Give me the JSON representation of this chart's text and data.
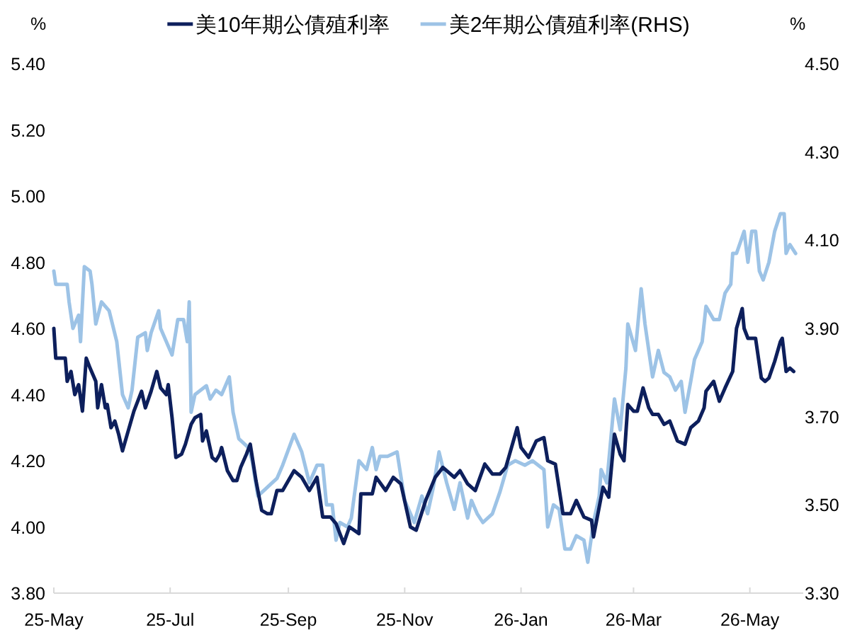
{
  "chart_data": {
    "type": "line",
    "ylabel": "%",
    "y2label": "%",
    "legend": "top",
    "xlim": [
      "2025-05-01",
      "2026-05-29"
    ],
    "xticks": [
      {
        "value": "2025-05-01",
        "label": "25-May"
      },
      {
        "value": "2025-07-01",
        "label": "25-Jul"
      },
      {
        "value": "2025-09-01",
        "label": "25-Sep"
      },
      {
        "value": "2025-11-01",
        "label": "25-Nov"
      },
      {
        "value": "2026-01-01",
        "label": "26-Jan"
      },
      {
        "value": "2026-03-01",
        "label": "26-Mar"
      },
      {
        "value": "2026-05-01",
        "label": "26-May"
      }
    ],
    "ylim": [
      3.8,
      5.4
    ],
    "yticks": [
      {
        "value": 3.8,
        "label": "3.80"
      },
      {
        "value": 4.0,
        "label": "4.00"
      },
      {
        "value": 4.2,
        "label": "4.20"
      },
      {
        "value": 4.4,
        "label": "4.40"
      },
      {
        "value": 4.6,
        "label": "4.60"
      },
      {
        "value": 4.8,
        "label": "4.80"
      },
      {
        "value": 5.0,
        "label": "5.00"
      },
      {
        "value": 5.2,
        "label": "5.20"
      },
      {
        "value": 5.4,
        "label": "5.40"
      }
    ],
    "y2lim": [
      3.3,
      4.5
    ],
    "y2ticks": [
      {
        "value": 3.3,
        "label": "3.30"
      },
      {
        "value": 3.5,
        "label": "3.50"
      },
      {
        "value": 3.7,
        "label": "3.70"
      },
      {
        "value": 3.9,
        "label": "3.90"
      },
      {
        "value": 4.1,
        "label": "4.10"
      },
      {
        "value": 4.3,
        "label": "4.30"
      },
      {
        "value": 4.5,
        "label": "4.50"
      }
    ],
    "series": [
      {
        "name": "美10年期公債殖利率",
        "color": "#0d1f5c",
        "x": [
          "2025-05-01",
          "2025-05-02",
          "2025-05-07",
          "2025-05-08",
          "2025-05-10",
          "2025-05-12",
          "2025-05-14",
          "2025-05-16",
          "2025-05-18",
          "2025-05-20",
          "2025-05-23",
          "2025-05-24",
          "2025-05-26",
          "2025-05-28",
          "2025-05-29",
          "2025-05-31",
          "2025-06-02",
          "2025-06-04",
          "2025-06-06",
          "2025-06-09",
          "2025-06-12",
          "2025-06-14",
          "2025-06-16",
          "2025-06-18",
          "2025-06-21",
          "2025-06-24",
          "2025-06-26",
          "2025-06-29",
          "2025-06-30",
          "2025-07-02",
          "2025-07-04",
          "2025-07-07",
          "2025-07-09",
          "2025-07-11",
          "2025-07-12",
          "2025-07-14",
          "2025-07-17",
          "2025-07-18",
          "2025-07-20",
          "2025-07-23",
          "2025-07-25",
          "2025-07-27",
          "2025-07-28",
          "2025-07-31",
          "2025-08-03",
          "2025-08-05",
          "2025-08-07",
          "2025-08-10",
          "2025-08-12",
          "2025-08-15",
          "2025-08-18",
          "2025-08-21",
          "2025-08-23",
          "2025-08-26",
          "2025-08-29",
          "2025-09-04",
          "2025-09-08",
          "2025-09-12",
          "2025-09-16",
          "2025-09-19",
          "2025-09-23",
          "2025-09-26",
          "2025-09-30",
          "2025-10-03",
          "2025-10-08",
          "2025-10-09",
          "2025-10-15",
          "2025-10-17",
          "2025-10-22",
          "2025-10-26",
          "2025-10-30",
          "2025-11-04",
          "2025-11-07",
          "2025-11-12",
          "2025-11-17",
          "2025-11-21",
          "2025-11-27",
          "2025-11-30",
          "2025-12-04",
          "2025-12-08",
          "2025-12-13",
          "2025-12-17",
          "2025-12-21",
          "2025-12-24",
          "2025-12-26",
          "2025-12-30",
          "2026-01-01",
          "2026-01-05",
          "2026-01-09",
          "2026-01-13",
          "2026-01-15",
          "2026-01-19",
          "2026-01-23",
          "2026-01-27",
          "2026-01-30",
          "2026-02-03",
          "2026-02-07",
          "2026-02-08",
          "2026-02-13",
          "2026-02-16",
          "2026-02-19",
          "2026-02-22",
          "2026-02-24",
          "2026-02-26",
          "2026-03-01",
          "2026-03-03",
          "2026-03-06",
          "2026-03-09",
          "2026-03-11",
          "2026-03-14",
          "2026-03-17",
          "2026-03-20",
          "2026-03-24",
          "2026-03-28",
          "2026-03-31",
          "2026-04-04",
          "2026-04-07",
          "2026-04-08",
          "2026-04-12",
          "2026-04-15",
          "2026-04-18",
          "2026-04-22",
          "2026-04-24",
          "2026-04-27",
          "2026-04-28",
          "2026-04-30",
          "2026-05-04",
          "2026-05-07",
          "2026-05-09",
          "2026-05-11",
          "2026-05-14",
          "2026-05-17",
          "2026-05-18",
          "2026-05-20",
          "2026-05-22",
          "2026-05-24"
        ],
        "values": [
          4.6,
          4.51,
          4.51,
          4.44,
          4.47,
          4.4,
          4.43,
          4.35,
          4.51,
          4.48,
          4.44,
          4.36,
          4.43,
          4.36,
          4.37,
          4.3,
          4.32,
          4.28,
          4.23,
          4.29,
          4.35,
          4.38,
          4.41,
          4.36,
          4.41,
          4.47,
          4.42,
          4.4,
          4.43,
          4.33,
          4.21,
          4.22,
          4.25,
          4.29,
          4.31,
          4.33,
          4.34,
          4.26,
          4.29,
          4.21,
          4.2,
          4.22,
          4.24,
          4.17,
          4.14,
          4.14,
          4.18,
          4.22,
          4.25,
          4.14,
          4.05,
          4.04,
          4.04,
          4.11,
          4.11,
          4.17,
          4.15,
          4.11,
          4.15,
          4.03,
          4.03,
          4.01,
          3.95,
          4.0,
          3.98,
          4.1,
          4.1,
          4.15,
          4.11,
          4.15,
          4.13,
          4.0,
          3.99,
          4.08,
          4.15,
          4.18,
          4.15,
          4.17,
          4.13,
          4.11,
          4.19,
          4.16,
          4.16,
          4.18,
          4.22,
          4.3,
          4.24,
          4.21,
          4.26,
          4.27,
          4.2,
          4.19,
          4.04,
          4.04,
          4.08,
          4.03,
          4.02,
          3.97,
          4.12,
          4.09,
          4.28,
          4.22,
          4.2,
          4.37,
          4.35,
          4.35,
          4.42,
          4.36,
          4.34,
          4.34,
          4.31,
          4.32,
          4.26,
          4.25,
          4.3,
          4.32,
          4.36,
          4.41,
          4.44,
          4.38,
          4.42,
          4.47,
          4.6,
          4.66,
          4.6,
          4.57,
          4.57,
          4.45,
          4.44,
          4.45,
          4.5,
          4.56,
          4.57,
          4.47,
          4.48,
          4.47
        ]
      },
      {
        "name": "美2年期公債殖利率(RHS)",
        "color": "#9dc3e6",
        "axis": "y2",
        "x": [
          "2025-05-01",
          "2025-05-02",
          "2025-05-08",
          "2025-05-09",
          "2025-05-11",
          "2025-05-14",
          "2025-05-15",
          "2025-05-17",
          "2025-05-20",
          "2025-05-21",
          "2025-05-23",
          "2025-05-26",
          "2025-05-30",
          "2025-06-03",
          "2025-06-06",
          "2025-06-09",
          "2025-06-11",
          "2025-06-14",
          "2025-06-18",
          "2025-06-19",
          "2025-06-21",
          "2025-06-25",
          "2025-06-26",
          "2025-06-29",
          "2025-07-02",
          "2025-07-05",
          "2025-07-08",
          "2025-07-10",
          "2025-07-11",
          "2025-07-12",
          "2025-07-14",
          "2025-07-20",
          "2025-07-22",
          "2025-07-25",
          "2025-07-28",
          "2025-08-01",
          "2025-08-03",
          "2025-08-06",
          "2025-08-11",
          "2025-08-13",
          "2025-08-16",
          "2025-08-21",
          "2025-08-26",
          "2025-08-29",
          "2025-09-04",
          "2025-09-08",
          "2025-09-12",
          "2025-09-16",
          "2025-09-19",
          "2025-09-21",
          "2025-09-24",
          "2025-09-26",
          "2025-09-28",
          "2025-10-02",
          "2025-10-04",
          "2025-10-08",
          "2025-10-12",
          "2025-10-15",
          "2025-10-17",
          "2025-10-19",
          "2025-10-23",
          "2025-10-28",
          "2025-11-01",
          "2025-11-06",
          "2025-11-10",
          "2025-11-13",
          "2025-11-16",
          "2025-11-19",
          "2025-11-23",
          "2025-11-27",
          "2025-11-30",
          "2025-12-04",
          "2025-12-06",
          "2025-12-09",
          "2025-12-12",
          "2025-12-17",
          "2025-12-21",
          "2025-12-25",
          "2025-12-29",
          "2026-01-03",
          "2026-01-07",
          "2026-01-10",
          "2026-01-13",
          "2026-01-15",
          "2026-01-18",
          "2026-01-21",
          "2026-01-24",
          "2026-01-27",
          "2026-01-30",
          "2026-02-03",
          "2026-02-05",
          "2026-02-08",
          "2026-02-11",
          "2026-02-12",
          "2026-02-15",
          "2026-02-19",
          "2026-02-22",
          "2026-02-25",
          "2026-02-26",
          "2026-03-02",
          "2026-03-05",
          "2026-03-07",
          "2026-03-11",
          "2026-03-14",
          "2026-03-17",
          "2026-03-20",
          "2026-03-23",
          "2026-03-26",
          "2026-03-28",
          "2026-03-31",
          "2026-04-02",
          "2026-04-06",
          "2026-04-08",
          "2026-04-12",
          "2026-04-15",
          "2026-04-18",
          "2026-04-21",
          "2026-04-22",
          "2026-04-24",
          "2026-04-28",
          "2026-04-30",
          "2026-05-02",
          "2026-05-04",
          "2026-05-06",
          "2026-05-08",
          "2026-05-11",
          "2026-05-14",
          "2026-05-17",
          "2026-05-19",
          "2026-05-20",
          "2026-05-22",
          "2026-05-25"
        ],
        "values": [
          4.03,
          4.0,
          4.0,
          3.96,
          3.9,
          3.93,
          3.87,
          4.04,
          4.03,
          4.0,
          3.91,
          3.96,
          3.94,
          3.87,
          3.75,
          3.72,
          3.76,
          3.88,
          3.89,
          3.85,
          3.89,
          3.94,
          3.9,
          3.87,
          3.84,
          3.92,
          3.92,
          3.87,
          3.96,
          3.71,
          3.75,
          3.77,
          3.74,
          3.76,
          3.75,
          3.79,
          3.71,
          3.65,
          3.63,
          3.6,
          3.52,
          3.54,
          3.56,
          3.59,
          3.66,
          3.62,
          3.55,
          3.59,
          3.59,
          3.5,
          3.5,
          3.42,
          3.46,
          3.45,
          3.47,
          3.6,
          3.58,
          3.63,
          3.58,
          3.61,
          3.61,
          3.62,
          3.51,
          3.46,
          3.52,
          3.48,
          3.54,
          3.62,
          3.55,
          3.49,
          3.55,
          3.47,
          3.51,
          3.48,
          3.46,
          3.48,
          3.53,
          3.59,
          3.6,
          3.59,
          3.6,
          3.59,
          3.58,
          3.45,
          3.5,
          3.49,
          3.4,
          3.4,
          3.43,
          3.42,
          3.37,
          3.46,
          3.52,
          3.58,
          3.55,
          3.74,
          3.67,
          3.81,
          3.91,
          3.85,
          3.99,
          3.91,
          3.79,
          3.85,
          3.8,
          3.79,
          3.76,
          3.78,
          3.71,
          3.78,
          3.83,
          3.87,
          3.95,
          3.92,
          3.92,
          3.98,
          4.0,
          4.07,
          4.07,
          4.12,
          4.05,
          4.12,
          4.12,
          4.03,
          4.01,
          4.05,
          4.12,
          4.16,
          4.16,
          4.07,
          4.09,
          4.07
        ]
      }
    ]
  }
}
